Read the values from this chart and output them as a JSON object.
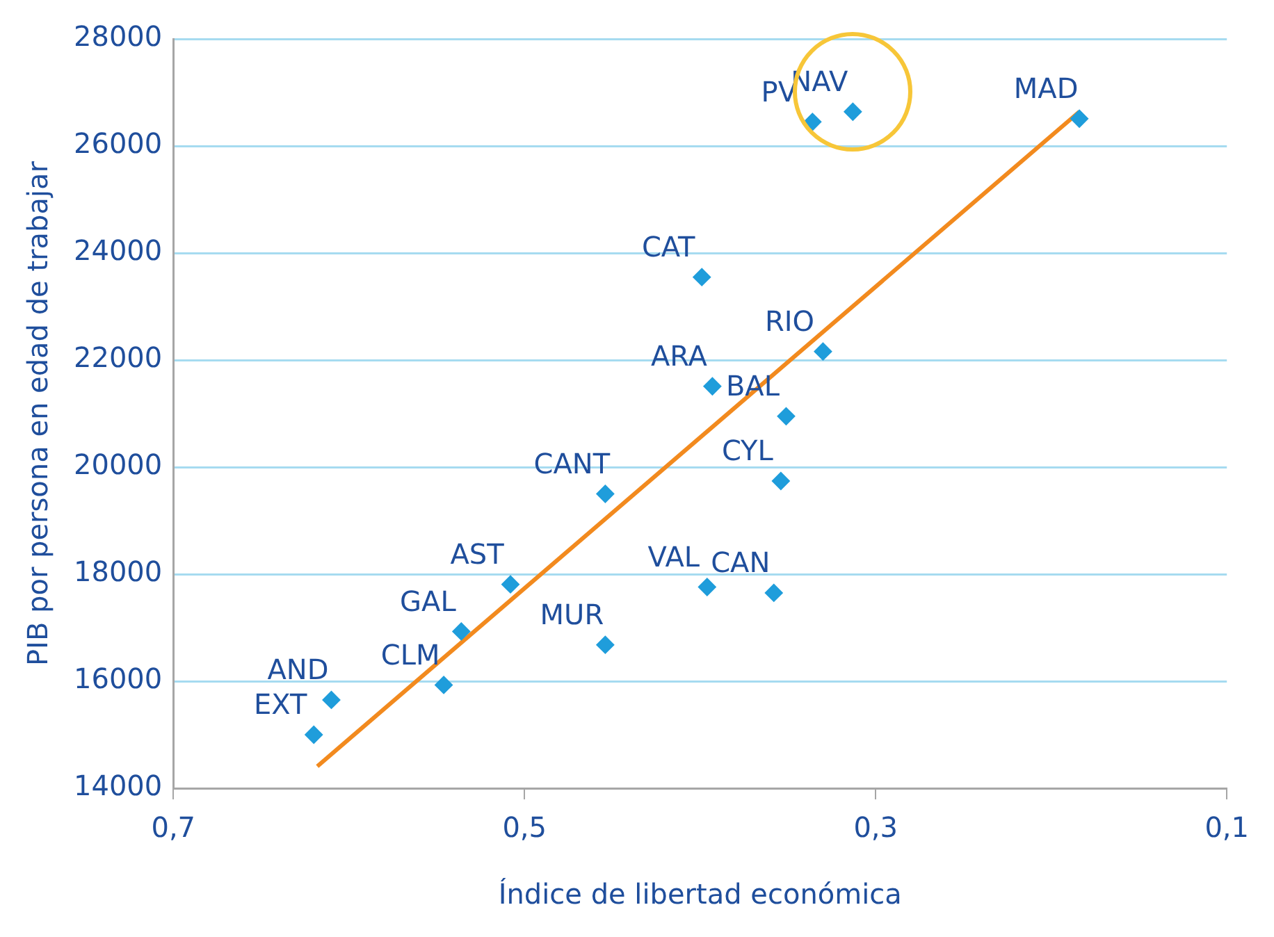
{
  "chart_data": {
    "type": "scatter",
    "xlabel": "Índice de libertad económica",
    "ylabel": "PIB por persona en edad de trabajar",
    "series": [
      {
        "type": "scatter",
        "color": "#1f9ddb",
        "marker": "diamond",
        "x": [
          0.62,
          0.61,
          0.546,
          0.536,
          0.508,
          0.454,
          0.454,
          0.396,
          0.358,
          0.354,
          0.351,
          0.393,
          0.399,
          0.33,
          0.336,
          0.313,
          0.184
        ],
        "values": [
          15000,
          15650,
          15930,
          16930,
          17810,
          16680,
          19500,
          17760,
          17650,
          19740,
          20950,
          21510,
          23550,
          22160,
          26450,
          26640,
          26510
        ]
      },
      {
        "type": "line",
        "color": "#f28a1e",
        "x": [
          0.618,
          0.184
        ],
        "values": [
          14410,
          26640
        ]
      }
    ],
    "annotations": [
      {
        "text": "EXT",
        "x": 0.62,
        "y": 15000
      },
      {
        "text": "AND",
        "x": 0.61,
        "y": 15650
      },
      {
        "text": "CLM",
        "x": 0.546,
        "y": 15930
      },
      {
        "text": "GAL",
        "x": 0.536,
        "y": 16930
      },
      {
        "text": "AST",
        "x": 0.508,
        "y": 17810
      },
      {
        "text": "MUR",
        "x": 0.454,
        "y": 16680
      },
      {
        "text": "CANT",
        "x": 0.454,
        "y": 19500
      },
      {
        "text": "VAL",
        "x": 0.396,
        "y": 17760
      },
      {
        "text": "CAN",
        "x": 0.358,
        "y": 17650
      },
      {
        "text": "CYL",
        "x": 0.354,
        "y": 19740
      },
      {
        "text": "BAL",
        "x": 0.351,
        "y": 20950
      },
      {
        "text": "ARA",
        "x": 0.393,
        "y": 21510
      },
      {
        "text": "CAT",
        "x": 0.399,
        "y": 23550
      },
      {
        "text": "RIO",
        "x": 0.33,
        "y": 22160
      },
      {
        "text": "PV",
        "x": 0.336,
        "y": 26450
      },
      {
        "text": "NAV",
        "x": 0.313,
        "y": 26640
      },
      {
        "text": "MAD",
        "x": 0.184,
        "y": 26510
      }
    ],
    "xlim": [
      0.7,
      0.1
    ],
    "xticks": [
      {
        "value": 0.7,
        "label": "0,7"
      },
      {
        "value": 0.5,
        "label": "0,5"
      },
      {
        "value": 0.3,
        "label": "0,3"
      },
      {
        "value": 0.1,
        "label": "0,1"
      }
    ],
    "ylim": [
      14000,
      28000
    ],
    "yticks": [
      14000,
      16000,
      18000,
      20000,
      22000,
      24000,
      26000,
      28000
    ],
    "grid": "y",
    "legend": false
  }
}
